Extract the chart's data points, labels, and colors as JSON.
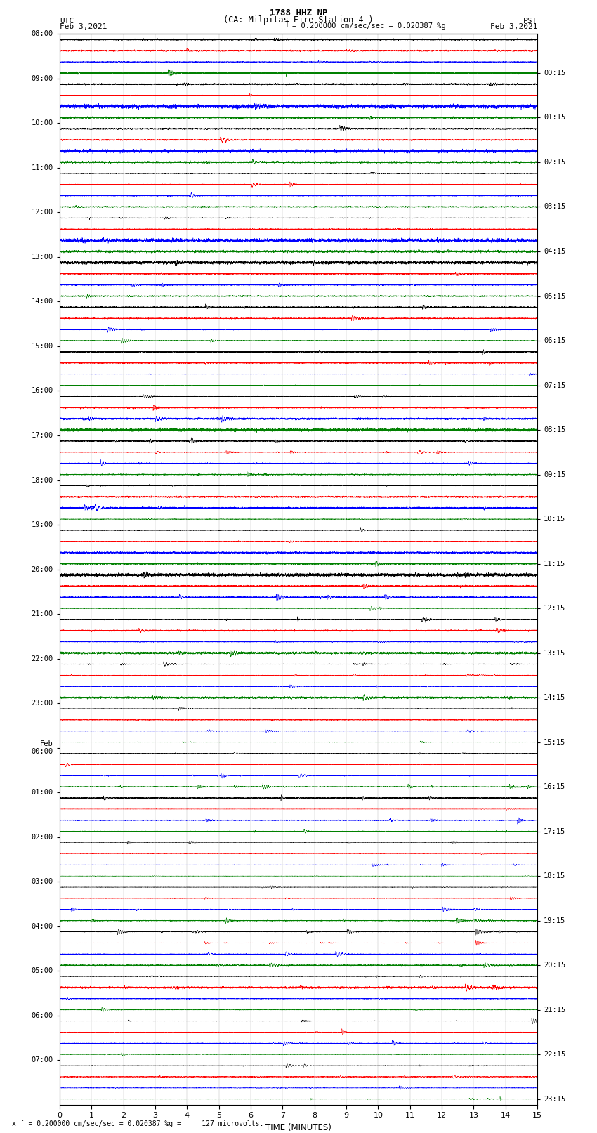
{
  "title_line1": "1788 HHZ NP",
  "title_line2": "(CA: Milpitas Fire Station 4 )",
  "left_label": "UTC",
  "right_label": "PST",
  "date_left": "Feb 3,2021",
  "date_right": "Feb 3,2021",
  "scale_text": "= 0.200000 cm/sec/sec = 0.020387 %g",
  "bottom_scale_text": "x [ = 0.200000 cm/sec/sec = 0.020387 %g =     127 microvolts.",
  "left_times": [
    "08:00",
    "09:00",
    "10:00",
    "11:00",
    "12:00",
    "13:00",
    "14:00",
    "15:00",
    "16:00",
    "17:00",
    "18:00",
    "19:00",
    "20:00",
    "21:00",
    "22:00",
    "23:00",
    "Feb\n00:00",
    "01:00",
    "02:00",
    "03:00",
    "04:00",
    "05:00",
    "06:00",
    "07:00"
  ],
  "right_times": [
    "00:15",
    "01:15",
    "02:15",
    "03:15",
    "04:15",
    "05:15",
    "06:15",
    "07:15",
    "08:15",
    "09:15",
    "10:15",
    "11:15",
    "12:15",
    "13:15",
    "14:15",
    "15:15",
    "16:15",
    "17:15",
    "18:15",
    "19:15",
    "20:15",
    "21:15",
    "22:15",
    "23:15"
  ],
  "num_rows": 24,
  "traces_per_row": 4,
  "colors": [
    "black",
    "red",
    "blue",
    "green"
  ],
  "xlabel": "TIME (MINUTES)",
  "xlim": [
    0,
    15
  ],
  "xticks": [
    0,
    1,
    2,
    3,
    4,
    5,
    6,
    7,
    8,
    9,
    10,
    11,
    12,
    13,
    14,
    15
  ],
  "background_color": "white",
  "figsize": [
    8.5,
    16.13
  ],
  "dpi": 100
}
